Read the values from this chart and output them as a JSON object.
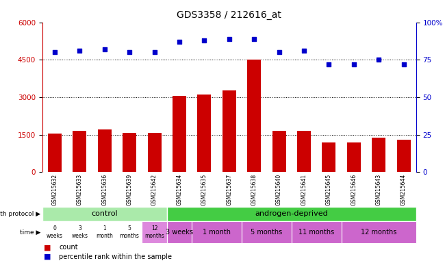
{
  "title": "GDS3358 / 212616_at",
  "samples": [
    "GSM215632",
    "GSM215633",
    "GSM215636",
    "GSM215639",
    "GSM215642",
    "GSM215634",
    "GSM215635",
    "GSM215637",
    "GSM215638",
    "GSM215640",
    "GSM215641",
    "GSM215645",
    "GSM215646",
    "GSM215643",
    "GSM215644"
  ],
  "counts": [
    1530,
    1650,
    1720,
    1580,
    1580,
    3050,
    3100,
    3280,
    4520,
    1650,
    1650,
    1190,
    1180,
    1380,
    1310
  ],
  "percentiles": [
    80,
    81,
    82,
    80,
    80,
    87,
    88,
    89,
    89,
    80,
    81,
    72,
    72,
    75,
    72
  ],
  "ylim_left": [
    0,
    6000
  ],
  "ylim_right": [
    0,
    100
  ],
  "yticks_left": [
    0,
    1500,
    3000,
    4500,
    6000
  ],
  "yticks_right": [
    0,
    25,
    50,
    75,
    100
  ],
  "bar_color": "#cc0000",
  "dot_color": "#0000cc",
  "growth_protocol_label": "growth protocol",
  "time_label": "time",
  "control_label": "control",
  "androgen_label": "androgen-deprived",
  "control_color": "#aaeaaa",
  "androgen_color": "#44cc44",
  "time_cell_color_white": "#ffffff",
  "time_cell_color_pink": "#dd88dd",
  "time_cell_color_violet": "#cc66cc",
  "time_labels_control": [
    "0\nweeks",
    "3\nweeks",
    "1\nmonth",
    "5\nmonths",
    "12\nmonths"
  ],
  "control_time_is_pink": [
    false,
    false,
    false,
    false,
    true
  ],
  "time_labels_androgen": [
    "3 weeks",
    "1 month",
    "5 months",
    "11 months",
    "12 months"
  ],
  "androgen_group_sizes": [
    1,
    2,
    2,
    2,
    3
  ],
  "control_n": 5,
  "androgen_n": 10,
  "legend_count_label": "count",
  "legend_pct_label": "percentile rank within the sample",
  "bg_color": "#ffffff",
  "sample_bg_color": "#cccccc",
  "axis_left_color": "#cc0000",
  "axis_right_color": "#0000cc",
  "bar_width": 0.55
}
